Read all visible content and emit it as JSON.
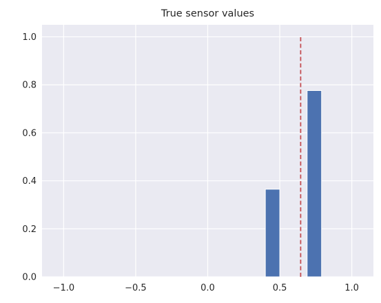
{
  "chart_data": {
    "type": "bar",
    "title": "True sensor values",
    "xlabel": "",
    "ylabel": "",
    "xlim": [
      -1.15,
      1.15
    ],
    "ylim": [
      0,
      1.05
    ],
    "xticks": [
      -1.0,
      -0.5,
      0.0,
      0.5,
      1.0
    ],
    "xtick_labels": [
      "−1.0",
      "−0.5",
      "0.0",
      "0.5",
      "1.0"
    ],
    "yticks": [
      0.0,
      0.2,
      0.4,
      0.6,
      0.8,
      1.0
    ],
    "ytick_labels": [
      "0.0",
      "0.2",
      "0.4",
      "0.6",
      "0.8",
      "1.0"
    ],
    "bars": [
      {
        "x": 0.45,
        "width": 0.1,
        "value": 0.365
      },
      {
        "x": 0.74,
        "width": 0.1,
        "value": 0.776
      }
    ],
    "reference_line": {
      "x": 0.645,
      "y_from": 0,
      "y_to": 1.0,
      "style": "dashed",
      "color": "#c44e52"
    },
    "bar_color": "#4c72b0",
    "background_color": "#eaeaf2",
    "grid": true,
    "grid_color": "#ffffff"
  }
}
